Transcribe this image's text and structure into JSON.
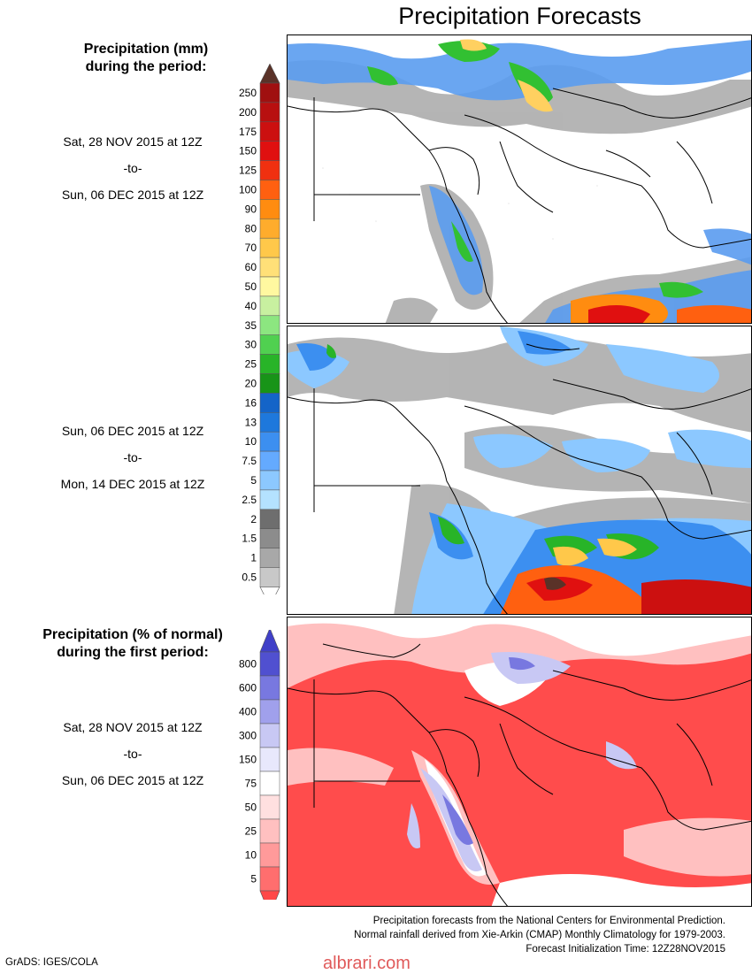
{
  "title": "Precipitation Forecasts",
  "panel1": {
    "header_line1": "Precipitation (mm)",
    "header_line2": "during the period:",
    "period1_start": "Sat, 28 NOV 2015 at 12Z",
    "period1_to": "-to-",
    "period1_end": "Sun, 06 DEC 2015 at 12Z",
    "period2_start": "Sun, 06 DEC 2015 at 12Z",
    "period2_to": "-to-",
    "period2_end": "Mon, 14 DEC 2015 at 12Z"
  },
  "mm_scale": {
    "labels": [
      "250",
      "200",
      "175",
      "150",
      "125",
      "100",
      "90",
      "80",
      "70",
      "60",
      "50",
      "40",
      "35",
      "30",
      "25",
      "20",
      "16",
      "13",
      "10",
      "7.5",
      "5",
      "2.5",
      "2",
      "1.5",
      "1",
      "0.5"
    ],
    "colors": [
      "#a01010",
      "#b81010",
      "#cc1010",
      "#e01010",
      "#f03010",
      "#ff6010",
      "#ff8c10",
      "#ffac2c",
      "#ffc84a",
      "#ffe078",
      "#fff8a0",
      "#c8f0a0",
      "#8ce680",
      "#50d050",
      "#28b428",
      "#189418",
      "#1464c8",
      "#1e78dc",
      "#3c8ff0",
      "#64aaff",
      "#8cc8ff",
      "#b4e2ff",
      "#6e6e6e",
      "#8c8c8c",
      "#a8a8a8",
      "#c8c8c8"
    ],
    "top_arrow_color": "#5a3228",
    "bottom_arrow_color": "#ffffff"
  },
  "panel3": {
    "header_line1": "Precipitation (% of normal)",
    "header_line2": "during the first period:",
    "period_start": "Sat, 28 NOV 2015 at 12Z",
    "period_to": "-to-",
    "period_end": "Sun, 06 DEC 2015 at 12Z"
  },
  "pct_scale": {
    "labels": [
      "800",
      "600",
      "400",
      "300",
      "150",
      "75",
      "50",
      "25",
      "10",
      "5"
    ],
    "colors": [
      "#5050d0",
      "#7878e0",
      "#a0a0ec",
      "#c8c8f4",
      "#e8e8fc",
      "#ffffff",
      "#ffe0e0",
      "#ffc0c0",
      "#ff9a9a",
      "#ff6e6e"
    ],
    "top_arrow_color": "#4040c8",
    "bottom_arrow_color": "#ff4848"
  },
  "footer": {
    "line1": "Precipitation forecasts from the National Centers for Environmental Prediction.",
    "line2": "Normal rainfall derived from Xie-Arkin (CMAP) Monthly Climatology for 1979-2003.",
    "line3": "Forecast Initialization Time: 12Z28NOV2015"
  },
  "credit": "GrADS: IGES/COLA",
  "watermark": "albrari.com"
}
